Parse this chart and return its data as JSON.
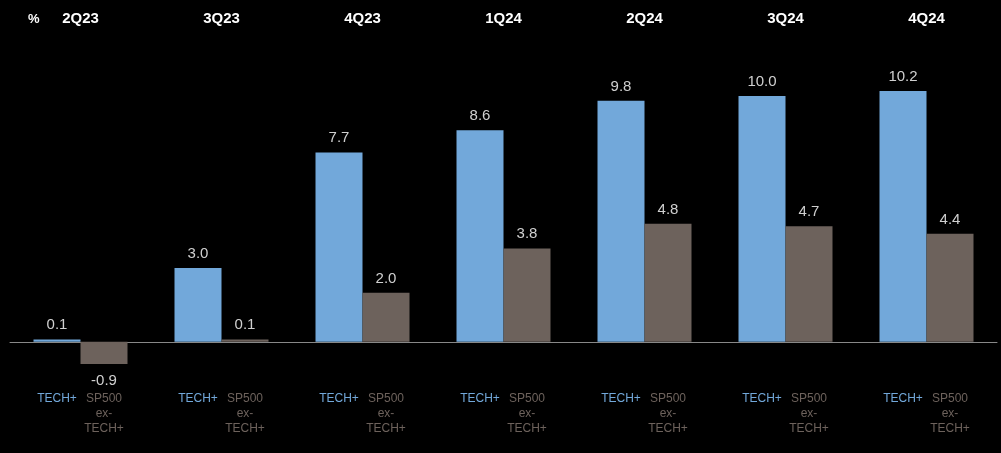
{
  "chart_data": {
    "type": "bar",
    "ylabel": "%",
    "categories": [
      "2Q23",
      "3Q23",
      "4Q23",
      "1Q24",
      "2Q24",
      "3Q24",
      "4Q24"
    ],
    "series": [
      {
        "name": "TECH+",
        "color": "#72a8da",
        "values": [
          0.1,
          3.0,
          7.7,
          8.6,
          9.8,
          10.0,
          10.2
        ],
        "value_labels": [
          "0.1",
          "3.0",
          "7.7",
          "8.6",
          "9.8",
          "10.0",
          "10.2"
        ]
      },
      {
        "name": "SP500 ex-TECH+",
        "color": "#6d625c",
        "values": [
          -0.9,
          0.1,
          2.0,
          3.8,
          4.8,
          4.7,
          4.4
        ],
        "value_labels": [
          "-0.9",
          "0.1",
          "2.0",
          "3.8",
          "4.8",
          "4.7",
          "4.4"
        ]
      }
    ]
  }
}
